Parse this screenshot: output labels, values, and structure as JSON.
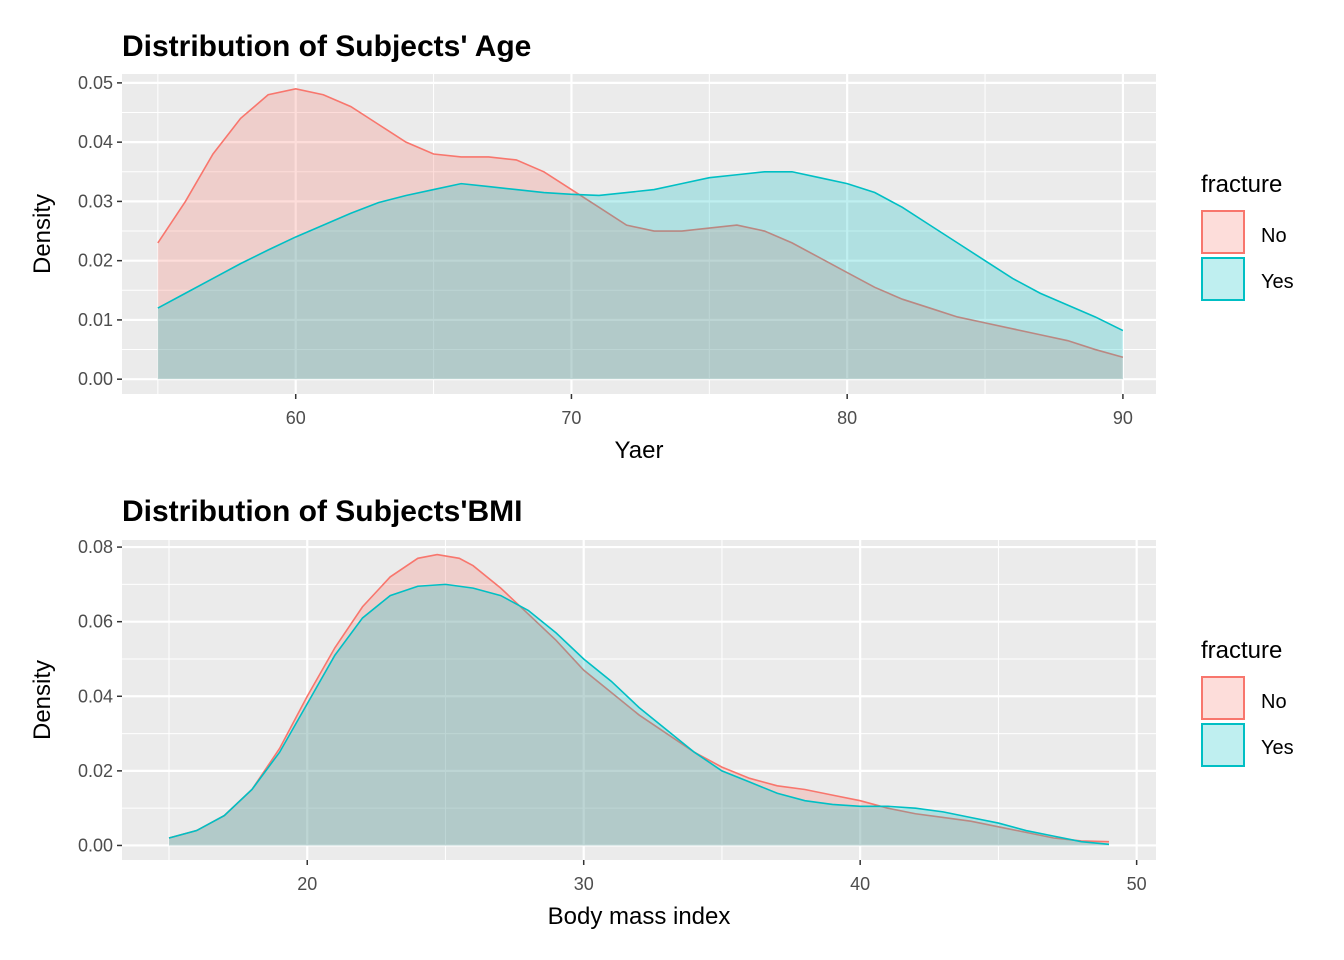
{
  "chart_data": [
    {
      "type": "area",
      "title": "Distribution of Subjects' Age",
      "xlabel": "Yaer",
      "ylabel": "Density",
      "xlim": [
        53.7,
        91.2
      ],
      "ylim": [
        -0.0025,
        0.0515
      ],
      "x_ticks": [
        60,
        70,
        80,
        90
      ],
      "x_tick_labels": [
        "60",
        "70",
        "80",
        "90"
      ],
      "y_ticks": [
        0,
        0.01,
        0.02,
        0.03,
        0.04,
        0.05
      ],
      "y_tick_labels": [
        "0.00",
        "0.01",
        "0.02",
        "0.03",
        "0.04",
        "0.05"
      ],
      "grid": true,
      "legend": {
        "title": "fracture",
        "position": "right",
        "entries": [
          "No",
          "Yes"
        ]
      },
      "series": [
        {
          "name": "No",
          "color": "#F8766D",
          "points": [
            [
              55,
              0.023
            ],
            [
              56,
              0.03
            ],
            [
              57,
              0.038
            ],
            [
              58,
              0.044
            ],
            [
              59,
              0.048
            ],
            [
              60,
              0.049
            ],
            [
              61,
              0.048
            ],
            [
              62,
              0.046
            ],
            [
              63,
              0.043
            ],
            [
              64,
              0.04
            ],
            [
              65,
              0.038
            ],
            [
              66,
              0.0375
            ],
            [
              67,
              0.0375
            ],
            [
              68,
              0.037
            ],
            [
              69,
              0.035
            ],
            [
              70,
              0.032
            ],
            [
              71,
              0.029
            ],
            [
              72,
              0.026
            ],
            [
              73,
              0.025
            ],
            [
              74,
              0.025
            ],
            [
              75,
              0.0255
            ],
            [
              76,
              0.026
            ],
            [
              77,
              0.025
            ],
            [
              78,
              0.023
            ],
            [
              79,
              0.0205
            ],
            [
              80,
              0.018
            ],
            [
              81,
              0.0155
            ],
            [
              82,
              0.0135
            ],
            [
              83,
              0.012
            ],
            [
              84,
              0.0105
            ],
            [
              85,
              0.0095
            ],
            [
              86,
              0.0085
            ],
            [
              87,
              0.0075
            ],
            [
              88,
              0.0065
            ],
            [
              89,
              0.005
            ],
            [
              90,
              0.0037
            ]
          ]
        },
        {
          "name": "Yes",
          "color": "#00BFC4",
          "points": [
            [
              55,
              0.012
            ],
            [
              56,
              0.0145
            ],
            [
              57,
              0.017
            ],
            [
              58,
              0.0195
            ],
            [
              59,
              0.0218
            ],
            [
              60,
              0.024
            ],
            [
              61,
              0.026
            ],
            [
              62,
              0.028
            ],
            [
              63,
              0.0298
            ],
            [
              64,
              0.031
            ],
            [
              65,
              0.032
            ],
            [
              66,
              0.033
            ],
            [
              67,
              0.0325
            ],
            [
              68,
              0.032
            ],
            [
              69,
              0.0315
            ],
            [
              70,
              0.0312
            ],
            [
              71,
              0.031
            ],
            [
              72,
              0.0315
            ],
            [
              73,
              0.032
            ],
            [
              74,
              0.033
            ],
            [
              75,
              0.034
            ],
            [
              76,
              0.0345
            ],
            [
              77,
              0.035
            ],
            [
              78,
              0.035
            ],
            [
              79,
              0.034
            ],
            [
              80,
              0.033
            ],
            [
              81,
              0.0315
            ],
            [
              82,
              0.029
            ],
            [
              83,
              0.026
            ],
            [
              84,
              0.023
            ],
            [
              85,
              0.02
            ],
            [
              86,
              0.017
            ],
            [
              87,
              0.0145
            ],
            [
              88,
              0.0125
            ],
            [
              89,
              0.0105
            ],
            [
              90,
              0.0082
            ]
          ]
        }
      ]
    },
    {
      "type": "area",
      "title": "Distribution of Subjects'BMI",
      "xlabel": "Body mass index",
      "ylabel": "Density",
      "xlim": [
        13.3,
        50.7
      ],
      "ylim": [
        -0.0039,
        0.0819
      ],
      "x_ticks": [
        20,
        30,
        40,
        50
      ],
      "x_tick_labels": [
        "20",
        "30",
        "40",
        "50"
      ],
      "y_ticks": [
        0,
        0.02,
        0.04,
        0.06,
        0.08
      ],
      "y_tick_labels": [
        "0.00",
        "0.02",
        "0.04",
        "0.06",
        "0.08"
      ],
      "grid": true,
      "legend": {
        "title": "fracture",
        "position": "right",
        "entries": [
          "No",
          "Yes"
        ]
      },
      "series": [
        {
          "name": "No",
          "color": "#F8766D",
          "points": [
            [
              15,
              0.002
            ],
            [
              16,
              0.004
            ],
            [
              17,
              0.008
            ],
            [
              18,
              0.015
            ],
            [
              19,
              0.026
            ],
            [
              20,
              0.04
            ],
            [
              21,
              0.053
            ],
            [
              22,
              0.064
            ],
            [
              23,
              0.072
            ],
            [
              24,
              0.077
            ],
            [
              24.7,
              0.078
            ],
            [
              25.5,
              0.077
            ],
            [
              26,
              0.075
            ],
            [
              27,
              0.069
            ],
            [
              28,
              0.062
            ],
            [
              29,
              0.055
            ],
            [
              30,
              0.047
            ],
            [
              31,
              0.041
            ],
            [
              32,
              0.035
            ],
            [
              33,
              0.03
            ],
            [
              34,
              0.025
            ],
            [
              35,
              0.021
            ],
            [
              36,
              0.018
            ],
            [
              37,
              0.016
            ],
            [
              38,
              0.015
            ],
            [
              39,
              0.0135
            ],
            [
              40,
              0.012
            ],
            [
              41,
              0.01
            ],
            [
              42,
              0.0085
            ],
            [
              43,
              0.0075
            ],
            [
              44,
              0.0065
            ],
            [
              45,
              0.005
            ],
            [
              46,
              0.0035
            ],
            [
              47,
              0.002
            ],
            [
              48,
              0.0012
            ],
            [
              49,
              0.001
            ]
          ]
        },
        {
          "name": "Yes",
          "color": "#00BFC4",
          "points": [
            [
              15,
              0.002
            ],
            [
              16,
              0.004
            ],
            [
              17,
              0.008
            ],
            [
              18,
              0.015
            ],
            [
              19,
              0.025
            ],
            [
              20,
              0.038
            ],
            [
              21,
              0.051
            ],
            [
              22,
              0.061
            ],
            [
              23,
              0.067
            ],
            [
              24,
              0.0695
            ],
            [
              25,
              0.07
            ],
            [
              26,
              0.069
            ],
            [
              27,
              0.067
            ],
            [
              28,
              0.063
            ],
            [
              29,
              0.057
            ],
            [
              30,
              0.05
            ],
            [
              31,
              0.044
            ],
            [
              32,
              0.037
            ],
            [
              33,
              0.031
            ],
            [
              34,
              0.025
            ],
            [
              35,
              0.02
            ],
            [
              36,
              0.017
            ],
            [
              37,
              0.014
            ],
            [
              38,
              0.012
            ],
            [
              39,
              0.011
            ],
            [
              40,
              0.0105
            ],
            [
              41,
              0.0105
            ],
            [
              42,
              0.01
            ],
            [
              43,
              0.009
            ],
            [
              44,
              0.0075
            ],
            [
              45,
              0.006
            ],
            [
              46,
              0.004
            ],
            [
              47,
              0.0025
            ],
            [
              48,
              0.001
            ],
            [
              49,
              0.0003
            ]
          ]
        }
      ]
    }
  ]
}
